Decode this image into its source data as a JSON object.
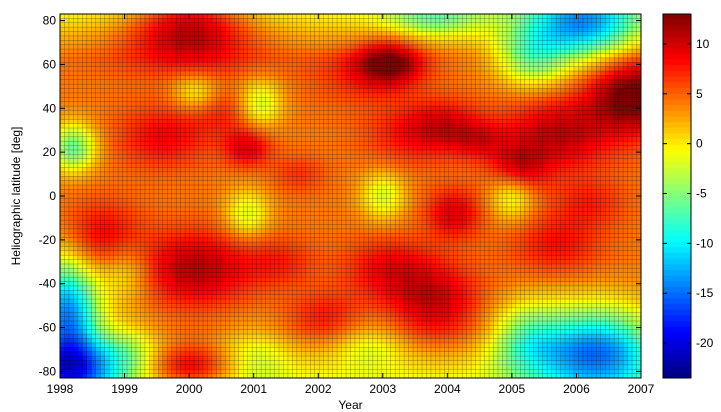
{
  "chart_data": {
    "type": "heatmap",
    "title": "",
    "xlabel": "Year",
    "ylabel": "Heliographic latitude [deg]",
    "xlim": [
      1998,
      2007
    ],
    "ylim": [
      -83,
      83
    ],
    "x_ticks": [
      1998,
      1999,
      2000,
      2001,
      2002,
      2003,
      2004,
      2005,
      2006,
      2007
    ],
    "y_ticks": [
      -80,
      -60,
      -40,
      -20,
      0,
      20,
      40,
      60,
      80
    ],
    "colorbar": {
      "range": [
        -23.5,
        13
      ],
      "ticks": [
        10,
        5,
        0,
        -5,
        -10,
        -15,
        -20
      ],
      "colormap": "jet"
    },
    "grid_resolution": {
      "x_cells": 130,
      "y_cells": 83
    },
    "blobs": [
      {
        "x": 2000.0,
        "y": 80,
        "amp": 7.5,
        "sx": 0.6,
        "sy": 10
      },
      {
        "x": 2000.0,
        "y": 68,
        "amp": 4.0,
        "sx": 0.9,
        "sy": 10
      },
      {
        "x": 2003.1,
        "y": 61,
        "amp": 8.5,
        "sx": 0.35,
        "sy": 7
      },
      {
        "x": 2002.7,
        "y": 56,
        "amp": 3.0,
        "sx": 0.6,
        "sy": 10
      },
      {
        "x": 2006.9,
        "y": 46,
        "amp": 10.0,
        "sx": 0.5,
        "sy": 12
      },
      {
        "x": 1999.6,
        "y": 27,
        "amp": 4.5,
        "sx": 0.5,
        "sy": 10
      },
      {
        "x": 2000.9,
        "y": 22,
        "amp": 5.5,
        "sx": 0.25,
        "sy": 6
      },
      {
        "x": 2000.6,
        "y": 38,
        "amp": 3.0,
        "sx": 0.4,
        "sy": 8
      },
      {
        "x": 2003.4,
        "y": 28,
        "amp": 3.5,
        "sx": 0.5,
        "sy": 10
      },
      {
        "x": 2004.0,
        "y": 32,
        "amp": 4.5,
        "sx": 0.4,
        "sy": 8
      },
      {
        "x": 2005.7,
        "y": 28,
        "amp": 6.5,
        "sx": 0.6,
        "sy": 12
      },
      {
        "x": 2004.5,
        "y": 25,
        "amp": 3.5,
        "sx": 0.3,
        "sy": 6
      },
      {
        "x": 2005.1,
        "y": 12,
        "amp": 5.5,
        "sx": 0.3,
        "sy": 8
      },
      {
        "x": 2001.7,
        "y": 10,
        "amp": 2.5,
        "sx": 0.3,
        "sy": 6
      },
      {
        "x": 2004.1,
        "y": -8,
        "amp": 5.5,
        "sx": 0.3,
        "sy": 8
      },
      {
        "x": 1998.6,
        "y": -20,
        "amp": 5.5,
        "sx": 0.45,
        "sy": 12
      },
      {
        "x": 2000.1,
        "y": -33,
        "amp": 7.0,
        "sx": 0.6,
        "sy": 12
      },
      {
        "x": 2001.4,
        "y": -30,
        "amp": 3.0,
        "sx": 0.4,
        "sy": 8
      },
      {
        "x": 2003.1,
        "y": -33,
        "amp": 4.5,
        "sx": 0.5,
        "sy": 10
      },
      {
        "x": 2003.8,
        "y": -48,
        "amp": 6.0,
        "sx": 0.5,
        "sy": 12
      },
      {
        "x": 2002.1,
        "y": -55,
        "amp": 3.5,
        "sx": 0.4,
        "sy": 8
      },
      {
        "x": 2005.7,
        "y": -22,
        "amp": 4.0,
        "sx": 0.5,
        "sy": 10
      },
      {
        "x": 2000.0,
        "y": -78,
        "amp": 8.0,
        "sx": 0.5,
        "sy": 7
      },
      {
        "x": 2006.2,
        "y": -3,
        "amp": 3.0,
        "sx": 0.4,
        "sy": 8
      },
      {
        "x": 1998.2,
        "y": 22,
        "amp": -10.0,
        "sx": 0.25,
        "sy": 8
      },
      {
        "x": 1998.1,
        "y": -55,
        "amp": -18.0,
        "sx": 0.35,
        "sy": 20
      },
      {
        "x": 1998.2,
        "y": -80,
        "amp": -12.0,
        "sx": 0.45,
        "sy": 10
      },
      {
        "x": 1999.0,
        "y": -72,
        "amp": -7.0,
        "sx": 0.4,
        "sy": 10
      },
      {
        "x": 2006.3,
        "y": -70,
        "amp": -17.0,
        "sx": 0.7,
        "sy": 14
      },
      {
        "x": 2005.2,
        "y": -65,
        "amp": -7.0,
        "sx": 0.4,
        "sy": 12
      },
      {
        "x": 2006.1,
        "y": 78,
        "amp": -14.0,
        "sx": 0.6,
        "sy": 12
      },
      {
        "x": 2005.3,
        "y": 63,
        "amp": -8.0,
        "sx": 0.4,
        "sy": 10
      },
      {
        "x": 2003.8,
        "y": 81,
        "amp": -6.0,
        "sx": 0.5,
        "sy": 6
      },
      {
        "x": 2001.1,
        "y": 42,
        "amp": -7.0,
        "sx": 0.25,
        "sy": 8
      },
      {
        "x": 2000.1,
        "y": 47,
        "amp": -5.0,
        "sx": 0.25,
        "sy": 6
      },
      {
        "x": 2003.0,
        "y": 0,
        "amp": -6.0,
        "sx": 0.25,
        "sy": 8
      },
      {
        "x": 2005.0,
        "y": 0,
        "amp": -6.0,
        "sx": 0.25,
        "sy": 8
      },
      {
        "x": 2000.9,
        "y": -8,
        "amp": -6.0,
        "sx": 0.25,
        "sy": 8
      },
      {
        "x": 1999.0,
        "y": -35,
        "amp": -5.0,
        "sx": 0.3,
        "sy": 10
      },
      {
        "x": 2002.8,
        "y": -68,
        "amp": -4.0,
        "sx": 0.4,
        "sy": 8
      },
      {
        "x": 2001.0,
        "y": -72,
        "amp": -4.0,
        "sx": 0.4,
        "sy": 10
      }
    ]
  }
}
